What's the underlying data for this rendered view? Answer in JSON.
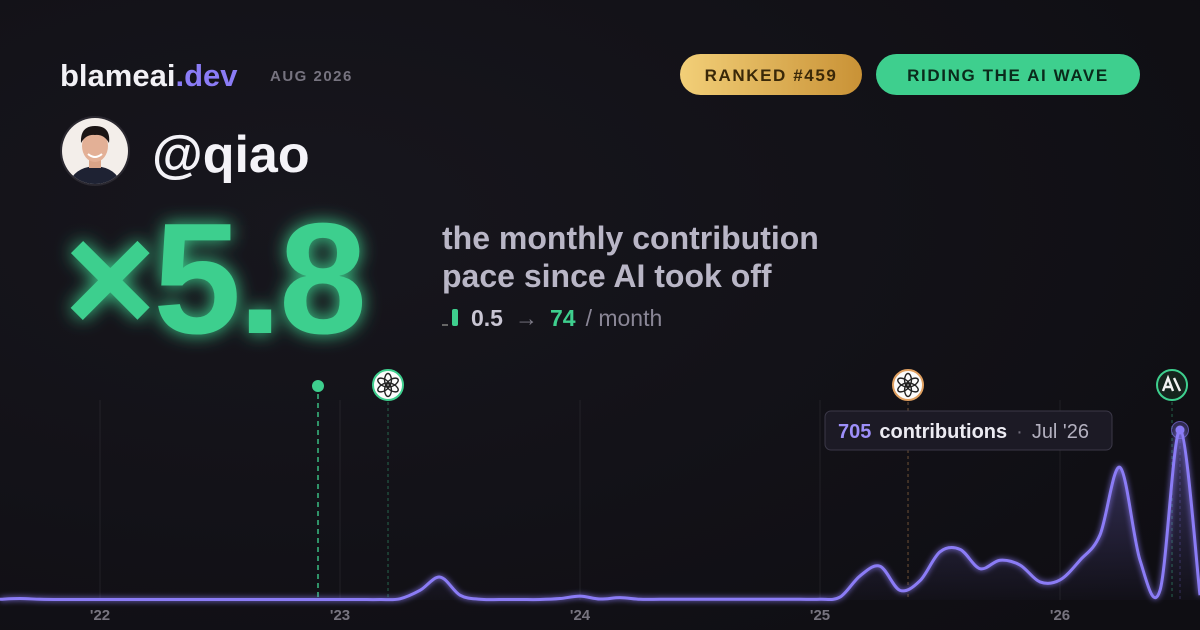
{
  "brand": {
    "name": "blameai",
    "tld": ".dev",
    "period": "AUG 2026"
  },
  "badges": [
    "RANKED #459",
    "RIDING THE AI WAVE"
  ],
  "user": {
    "handle": "@qiao"
  },
  "stat": {
    "multiplier": "×5.8",
    "caption_lines": [
      "the monthly contribution",
      "pace since AI took off"
    ],
    "before": 0.5,
    "arrow": "→",
    "after": 74,
    "unit": "/ month"
  },
  "chart_data": {
    "type": "line",
    "color": "#8b7cf6",
    "x": [
      2021.5833,
      2021.6667,
      2021.75,
      2021.8333,
      2021.9167,
      2022,
      2022.0833,
      2022.1667,
      2022.25,
      2022.3333,
      2022.4167,
      2022.5,
      2022.5833,
      2022.6667,
      2022.75,
      2022.8333,
      2022.9167,
      2023,
      2023.0833,
      2023.1667,
      2023.25,
      2023.3333,
      2023.4167,
      2023.5,
      2023.5833,
      2023.6667,
      2023.75,
      2023.8333,
      2023.9167,
      2024,
      2024.0833,
      2024.1667,
      2024.25,
      2024.3333,
      2024.4167,
      2024.5,
      2024.5833,
      2024.6667,
      2024.75,
      2024.8333,
      2024.9167,
      2025,
      2025.0833,
      2025.1667,
      2025.25,
      2025.3333,
      2025.4167,
      2025.5,
      2025.5833,
      2025.6667,
      2025.75,
      2025.8333,
      2025.9167,
      2026,
      2026.0833,
      2026.1667,
      2026.25,
      2026.3333,
      2026.4167,
      2026.5,
      2026.5833
    ],
    "values": [
      3,
      6,
      3,
      2,
      2,
      2,
      2,
      2,
      2,
      2,
      2,
      2,
      2,
      2,
      2,
      2,
      2,
      2,
      2,
      2,
      5,
      40,
      95,
      20,
      3,
      2,
      2,
      2,
      6,
      16,
      4,
      10,
      3,
      3,
      3,
      3,
      3,
      3,
      3,
      3,
      3,
      3,
      12,
      100,
      140,
      40,
      80,
      200,
      210,
      130,
      165,
      145,
      75,
      83,
      165,
      270,
      550,
      165,
      40,
      705,
      20
    ],
    "xlim": [
      2021.5833,
      2026.5833
    ],
    "ylim": [
      0,
      705
    ],
    "xticks": [
      {
        "value": 2022,
        "label": "'22"
      },
      {
        "value": 2023,
        "label": "'23"
      },
      {
        "value": 2024,
        "label": "'24"
      },
      {
        "value": 2025,
        "label": "'25"
      },
      {
        "value": 2026,
        "label": "'26"
      }
    ],
    "grid": true,
    "events": [
      {
        "x": 2022.9083,
        "color": "#3ecf8e"
      },
      {
        "x": 2023.2,
        "color": "#3ecf8e"
      },
      {
        "x": 2025.3667,
        "color": "#e0a060"
      },
      {
        "x": 2026.4667,
        "color": "#3ecf8e"
      }
    ],
    "tooltip": {
      "label": "contributions",
      "separator": "·",
      "date": "Jul '26"
    }
  }
}
